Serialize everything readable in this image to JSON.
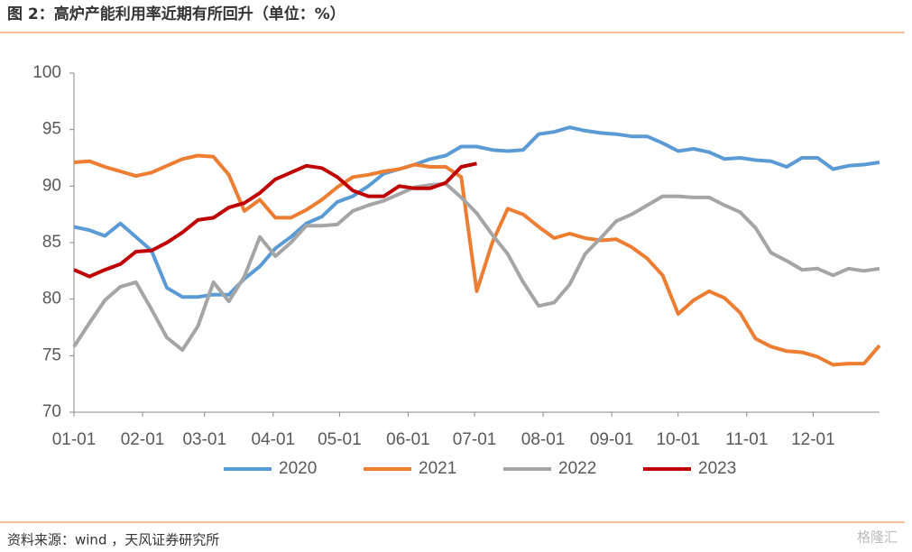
{
  "chart_data": {
    "type": "line",
    "title": "图 2：高炉产能利用率近期有所回升（单位：%）",
    "source": "资料来源：wind ，天风证券研究所",
    "watermark": "格隆汇",
    "x": [
      "01-01",
      "01-08",
      "01-15",
      "01-22",
      "01-29",
      "02-05",
      "02-12",
      "02-19",
      "02-26",
      "03-05",
      "03-12",
      "03-19",
      "03-26",
      "04-02",
      "04-09",
      "04-16",
      "04-23",
      "04-30",
      "05-07",
      "05-14",
      "05-21",
      "05-28",
      "06-04",
      "06-11",
      "06-18",
      "06-25",
      "07-02",
      "07-09",
      "07-16",
      "07-23",
      "07-30",
      "08-06",
      "08-13",
      "08-20",
      "08-27",
      "09-03",
      "09-10",
      "09-17",
      "09-24",
      "10-01",
      "10-08",
      "10-15",
      "10-22",
      "10-29",
      "11-05",
      "11-12",
      "11-19",
      "11-26",
      "12-03",
      "12-10",
      "12-17",
      "12-24",
      "12-31"
    ],
    "xlim": [
      "01-01",
      "12-31"
    ],
    "xticks": [
      "01-01",
      "02-01",
      "03-01",
      "04-01",
      "05-01",
      "06-01",
      "07-01",
      "08-01",
      "09-01",
      "10-01",
      "11-01",
      "12-01"
    ],
    "ylim": [
      70,
      100
    ],
    "yticks": [
      70,
      75,
      80,
      85,
      90,
      95,
      100
    ],
    "legend": "bottom",
    "series": [
      {
        "name": "2020",
        "color": "#5b9bd5",
        "values": [
          86.4,
          86.1,
          85.6,
          86.7,
          85.5,
          84.3,
          81.0,
          80.2,
          80.2,
          80.4,
          80.4,
          81.8,
          82.9,
          84.5,
          85.5,
          86.7,
          87.3,
          88.6,
          89.1,
          90.0,
          91.1,
          91.5,
          91.9,
          92.4,
          92.7,
          93.5,
          93.5,
          93.2,
          93.1,
          93.2,
          94.6,
          94.8,
          95.2,
          94.9,
          94.7,
          94.6,
          94.4,
          94.4,
          93.8,
          93.1,
          93.3,
          93.0,
          92.4,
          92.5,
          92.3,
          92.2,
          91.7,
          92.5,
          92.5,
          91.5,
          91.8,
          91.9,
          92.1
        ]
      },
      {
        "name": "2021",
        "color": "#ed7d31",
        "values": [
          92.1,
          92.2,
          91.7,
          91.3,
          90.9,
          91.2,
          91.8,
          92.4,
          92.7,
          92.6,
          91.0,
          87.8,
          88.8,
          87.2,
          87.2,
          87.9,
          88.8,
          89.9,
          90.8,
          91.0,
          91.3,
          91.5,
          91.9,
          91.7,
          91.7,
          90.8,
          80.7,
          85.0,
          88.0,
          87.5,
          86.4,
          85.4,
          85.8,
          85.4,
          85.2,
          85.3,
          84.6,
          83.6,
          82.1,
          78.7,
          79.9,
          80.7,
          80.1,
          78.8,
          76.5,
          75.8,
          75.4,
          75.3,
          74.9,
          74.2,
          74.3,
          74.3,
          75.9
        ]
      },
      {
        "name": "2022",
        "color": "#a5a5a5",
        "values": [
          75.8,
          77.9,
          79.9,
          81.1,
          81.5,
          79.1,
          76.6,
          75.5,
          77.6,
          81.5,
          79.8,
          82.0,
          85.5,
          83.8,
          85.0,
          86.5,
          86.5,
          86.6,
          87.8,
          88.3,
          88.7,
          89.3,
          89.9,
          90.1,
          90.2,
          89.0,
          87.6,
          85.7,
          84.0,
          81.5,
          79.4,
          79.7,
          81.3,
          84.0,
          85.4,
          86.9,
          87.5,
          88.3,
          89.1,
          89.1,
          89.0,
          89.0,
          88.3,
          87.7,
          86.3,
          84.1,
          83.4,
          82.6,
          82.7,
          82.1,
          82.7,
          82.5,
          82.7
        ]
      },
      {
        "name": "2023",
        "color": "#c00000",
        "values": [
          82.6,
          82.0,
          82.6,
          83.1,
          84.2,
          84.3,
          85.0,
          85.9,
          87.0,
          87.2,
          88.1,
          88.5,
          89.4,
          90.6,
          91.2,
          91.8,
          91.6,
          90.8,
          89.6,
          89.1,
          89.1,
          90.0,
          89.8,
          89.8,
          90.3,
          91.7,
          92.0,
          null,
          null,
          null,
          null,
          null,
          null,
          null,
          null,
          null,
          null,
          null,
          null,
          null,
          null,
          null,
          null,
          null,
          null,
          null,
          null,
          null,
          null,
          null,
          null,
          null,
          null
        ]
      }
    ]
  }
}
